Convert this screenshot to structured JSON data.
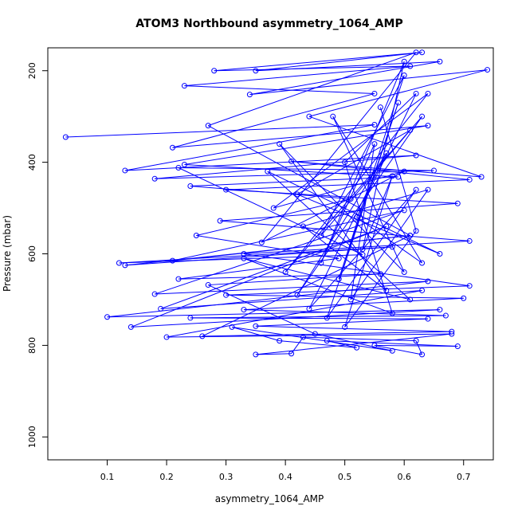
{
  "chart_data": {
    "type": "line",
    "title": "ATOM3 Northbound asymmetry_1064_AMP",
    "xlabel": "asymmetry_1064_AMP",
    "ylabel": "Pressure (mbar)",
    "xlim": [
      0.0,
      0.75
    ],
    "ylim": [
      1050,
      150
    ],
    "y_reversed": true,
    "x_ticks": [
      0.1,
      0.2,
      0.3,
      0.4,
      0.5,
      0.6,
      0.7
    ],
    "x_tick_labels": [
      "0.1",
      "0.2",
      "0.3",
      "0.4",
      "0.5",
      "0.6",
      "0.7"
    ],
    "y_ticks": [
      200,
      400,
      600,
      800,
      1000
    ],
    "y_tick_labels": [
      "200",
      "400",
      "600",
      "800",
      "1000"
    ],
    "grid": false,
    "series": [
      {
        "color": "#0000ff",
        "marker": "open-circle",
        "points": [
          {
            "x": 0.03,
            "y": 345
          },
          {
            "x": 0.55,
            "y": 318
          },
          {
            "x": 0.13,
            "y": 418
          },
          {
            "x": 0.62,
            "y": 385
          },
          {
            "x": 0.18,
            "y": 436
          },
          {
            "x": 0.65,
            "y": 418
          },
          {
            "x": 0.22,
            "y": 412
          },
          {
            "x": 0.53,
            "y": 602
          },
          {
            "x": 0.12,
            "y": 620
          },
          {
            "x": 0.58,
            "y": 585
          },
          {
            "x": 0.13,
            "y": 625
          },
          {
            "x": 0.61,
            "y": 560
          },
          {
            "x": 0.21,
            "y": 615
          },
          {
            "x": 0.6,
            "y": 505
          },
          {
            "x": 0.18,
            "y": 688
          },
          {
            "x": 0.64,
            "y": 660
          },
          {
            "x": 0.1,
            "y": 738
          },
          {
            "x": 0.66,
            "y": 722
          },
          {
            "x": 0.14,
            "y": 760
          },
          {
            "x": 0.57,
            "y": 540
          },
          {
            "x": 0.19,
            "y": 720
          },
          {
            "x": 0.63,
            "y": 680
          },
          {
            "x": 0.2,
            "y": 782
          },
          {
            "x": 0.68,
            "y": 775
          },
          {
            "x": 0.35,
            "y": 820
          },
          {
            "x": 0.41,
            "y": 818
          },
          {
            "x": 0.43,
            "y": 782
          },
          {
            "x": 0.62,
            "y": 790
          },
          {
            "x": 0.63,
            "y": 820
          },
          {
            "x": 0.55,
            "y": 800
          },
          {
            "x": 0.69,
            "y": 802
          },
          {
            "x": 0.47,
            "y": 790
          },
          {
            "x": 0.52,
            "y": 805
          },
          {
            "x": 0.39,
            "y": 790
          },
          {
            "x": 0.31,
            "y": 760
          },
          {
            "x": 0.58,
            "y": 812
          },
          {
            "x": 0.45,
            "y": 775
          },
          {
            "x": 0.27,
            "y": 668
          },
          {
            "x": 0.56,
            "y": 644
          },
          {
            "x": 0.22,
            "y": 655
          },
          {
            "x": 0.49,
            "y": 610
          },
          {
            "x": 0.25,
            "y": 560
          },
          {
            "x": 0.51,
            "y": 480
          },
          {
            "x": 0.24,
            "y": 452
          },
          {
            "x": 0.59,
            "y": 432
          },
          {
            "x": 0.23,
            "y": 405
          },
          {
            "x": 0.64,
            "y": 320
          },
          {
            "x": 0.21,
            "y": 368
          },
          {
            "x": 0.55,
            "y": 250
          },
          {
            "x": 0.23,
            "y": 233
          },
          {
            "x": 0.61,
            "y": 190
          },
          {
            "x": 0.28,
            "y": 200
          },
          {
            "x": 0.63,
            "y": 160
          },
          {
            "x": 0.35,
            "y": 200
          },
          {
            "x": 0.66,
            "y": 180
          },
          {
            "x": 0.34,
            "y": 252
          },
          {
            "x": 0.74,
            "y": 198
          },
          {
            "x": 0.44,
            "y": 300
          },
          {
            "x": 0.73,
            "y": 432
          },
          {
            "x": 0.41,
            "y": 398
          },
          {
            "x": 0.71,
            "y": 438
          },
          {
            "x": 0.3,
            "y": 460
          },
          {
            "x": 0.69,
            "y": 490
          },
          {
            "x": 0.29,
            "y": 528
          },
          {
            "x": 0.71,
            "y": 572
          },
          {
            "x": 0.33,
            "y": 600
          },
          {
            "x": 0.71,
            "y": 670
          },
          {
            "x": 0.3,
            "y": 690
          },
          {
            "x": 0.7,
            "y": 697
          },
          {
            "x": 0.33,
            "y": 722
          },
          {
            "x": 0.67,
            "y": 735
          },
          {
            "x": 0.24,
            "y": 740
          },
          {
            "x": 0.64,
            "y": 742
          },
          {
            "x": 0.35,
            "y": 758
          },
          {
            "x": 0.68,
            "y": 770
          },
          {
            "x": 0.26,
            "y": 780
          },
          {
            "x": 0.61,
            "y": 560
          },
          {
            "x": 0.27,
            "y": 320
          },
          {
            "x": 0.62,
            "y": 160
          },
          {
            "x": 0.36,
            "y": 575
          },
          {
            "x": 0.6,
            "y": 420
          },
          {
            "x": 0.38,
            "y": 500
          },
          {
            "x": 0.64,
            "y": 250
          },
          {
            "x": 0.4,
            "y": 640
          },
          {
            "x": 0.63,
            "y": 300
          },
          {
            "x": 0.42,
            "y": 690
          },
          {
            "x": 0.57,
            "y": 380
          },
          {
            "x": 0.44,
            "y": 720
          },
          {
            "x": 0.62,
            "y": 460
          },
          {
            "x": 0.47,
            "y": 740
          },
          {
            "x": 0.59,
            "y": 270
          },
          {
            "x": 0.49,
            "y": 655
          },
          {
            "x": 0.6,
            "y": 210
          },
          {
            "x": 0.46,
            "y": 560
          },
          {
            "x": 0.61,
            "y": 330
          },
          {
            "x": 0.42,
            "y": 470
          },
          {
            "x": 0.66,
            "y": 600
          },
          {
            "x": 0.37,
            "y": 420
          },
          {
            "x": 0.61,
            "y": 700
          },
          {
            "x": 0.33,
            "y": 610
          },
          {
            "x": 0.58,
            "y": 730
          },
          {
            "x": 0.5,
            "y": 400
          },
          {
            "x": 0.62,
            "y": 250
          },
          {
            "x": 0.52,
            "y": 520
          },
          {
            "x": 0.63,
            "y": 620
          },
          {
            "x": 0.48,
            "y": 300
          },
          {
            "x": 0.6,
            "y": 640
          },
          {
            "x": 0.39,
            "y": 360
          },
          {
            "x": 0.57,
            "y": 680
          },
          {
            "x": 0.43,
            "y": 540
          },
          {
            "x": 0.64,
            "y": 460
          },
          {
            "x": 0.51,
            "y": 700
          },
          {
            "x": 0.55,
            "y": 360
          },
          {
            "x": 0.46,
            "y": 620
          },
          {
            "x": 0.6,
            "y": 180
          },
          {
            "x": 0.53,
            "y": 590
          },
          {
            "x": 0.58,
            "y": 430
          },
          {
            "x": 0.5,
            "y": 760
          },
          {
            "x": 0.62,
            "y": 550
          },
          {
            "x": 0.56,
            "y": 280
          }
        ]
      }
    ]
  }
}
